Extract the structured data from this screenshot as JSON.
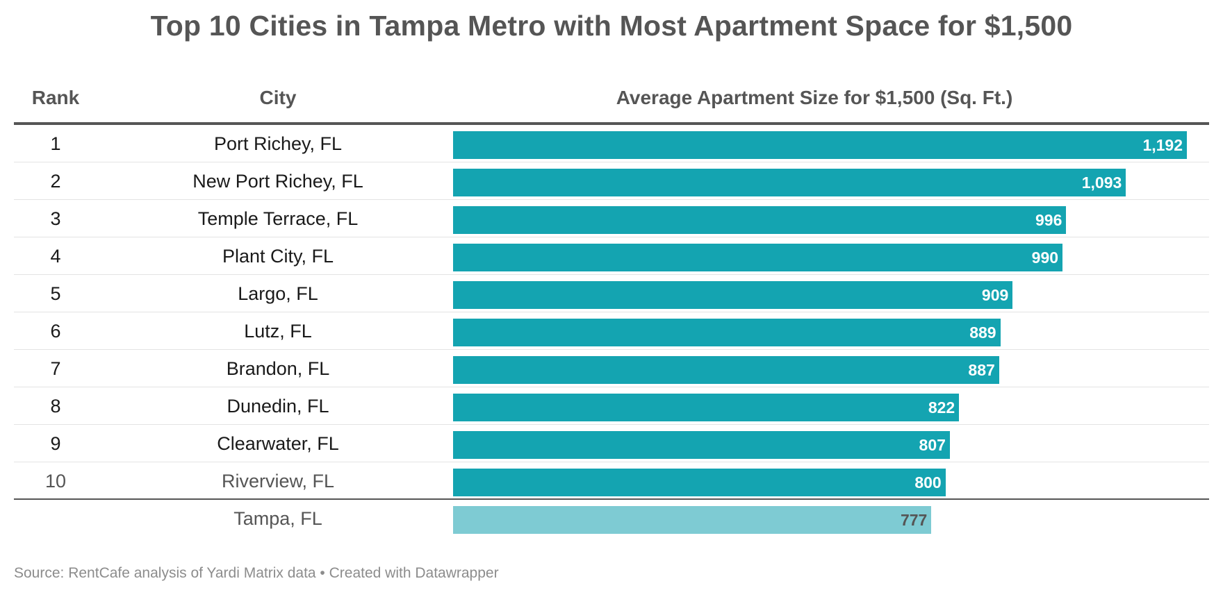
{
  "title": "Top 10 Cities in Tampa Metro with Most Apartment Space for $1,500",
  "columns": {
    "rank": "Rank",
    "city": "City",
    "size": "Average Apartment Size for $1,500 (Sq. Ft.)"
  },
  "footer": "Source: RentCafe analysis of Yardi Matrix data • Created with Datawrapper",
  "colors": {
    "bar": "#14a4b1",
    "reference_bar": "#7ecbd3",
    "header_text": "#555555"
  },
  "chart_data": {
    "type": "bar",
    "orientation": "horizontal",
    "title": "Top 10 Cities in Tampa Metro with Most Apartment Space for $1,500",
    "xlabel": "Average Apartment Size for $1,500 (Sq. Ft.)",
    "xlim": [
      0,
      1192
    ],
    "categories": [
      "Port Richey, FL",
      "New Port Richey, FL",
      "Temple Terrace, FL",
      "Plant City, FL",
      "Largo, FL",
      "Lutz, FL",
      "Brandon, FL",
      "Dunedin, FL",
      "Clearwater, FL",
      "Riverview, FL",
      "Tampa, FL"
    ],
    "ranks": [
      "1",
      "2",
      "3",
      "4",
      "5",
      "6",
      "7",
      "8",
      "9",
      "10",
      ""
    ],
    "values": [
      1192,
      1093,
      996,
      990,
      909,
      889,
      887,
      822,
      807,
      800,
      777
    ],
    "value_labels": [
      "1,192",
      "1,093",
      "996",
      "990",
      "909",
      "889",
      "887",
      "822",
      "807",
      "800",
      "777"
    ],
    "reference_category": "Tampa, FL"
  }
}
